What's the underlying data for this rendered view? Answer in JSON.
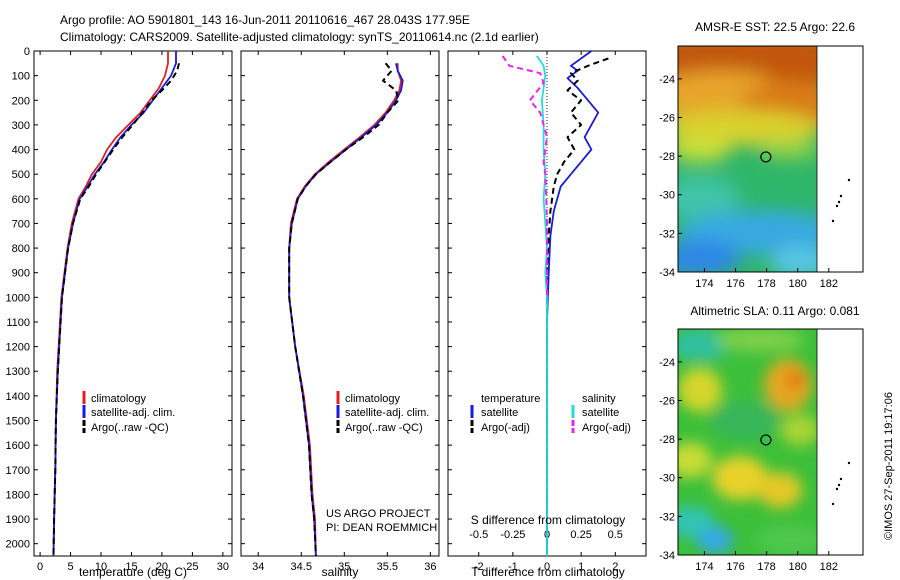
{
  "header": {
    "line1": "Argo profile: AO 5901801_143 16-Jun-2011 20110616_467 28.043S 177.95E",
    "line2": "Climatology: CARS2009. Satellite-adjusted climatology: synTS_20110614.nc (2.1d earlier)"
  },
  "colors": {
    "climatology": "#e02020",
    "satellite": "#1a1ae0",
    "argo": "#000000",
    "argo_salinity_diff": "#ee22ee",
    "satellite_salinity_diff": "#22dddd"
  },
  "chart_data": [
    {
      "type": "line",
      "id": "temperature",
      "xlabel": "temperature (deg C)",
      "ylabel": "",
      "xlim": [
        -1,
        31.5
      ],
      "ylim": [
        2050,
        0
      ],
      "xticks": [
        0,
        5,
        10,
        15,
        20,
        25,
        30
      ],
      "yticks": [
        0,
        100,
        200,
        300,
        400,
        500,
        600,
        700,
        800,
        900,
        1000,
        1100,
        1200,
        1300,
        1400,
        1500,
        1600,
        1700,
        1800,
        1900,
        2000
      ],
      "legend": [
        "climatology",
        "satellite-adj. clim.",
        "Argo(..raw -QC)"
      ],
      "series": [
        {
          "name": "climatology",
          "style": "solid",
          "color": "#e02020",
          "x": [
            21.0,
            21.0,
            20.5,
            19.5,
            18.0,
            16.5,
            14.5,
            12.5,
            11.0,
            10.0,
            8.5,
            7.5,
            6.3,
            5.2,
            4.5,
            3.5,
            2.8,
            2.6,
            2.5,
            2.4,
            2.3,
            2.2
          ],
          "y": [
            0,
            50,
            100,
            150,
            200,
            250,
            300,
            350,
            400,
            450,
            500,
            550,
            600,
            700,
            800,
            1000,
            1300,
            1500,
            1700,
            1800,
            1900,
            2050
          ]
        },
        {
          "name": "satellite-adj. clim.",
          "style": "solid",
          "color": "#1a1ae0",
          "x": [
            22.3,
            22.3,
            21.5,
            20.0,
            18.5,
            17.0,
            15.0,
            13.2,
            11.8,
            10.5,
            9.0,
            7.8,
            6.5,
            5.4,
            4.6,
            3.6,
            2.9,
            2.6,
            2.5,
            2.4,
            2.3,
            2.2
          ],
          "y": [
            0,
            50,
            100,
            150,
            200,
            250,
            300,
            350,
            400,
            450,
            500,
            550,
            600,
            700,
            800,
            1000,
            1300,
            1500,
            1700,
            1800,
            1900,
            2050
          ]
        },
        {
          "name": "Argo(..raw -QC)",
          "style": "dashed",
          "color": "#000000",
          "x": [
            22.8,
            22.5,
            21.5,
            20.0,
            18.3,
            16.8,
            15.2,
            13.5,
            12.0,
            10.6,
            9.2,
            8.0,
            6.6,
            5.4,
            4.6,
            3.6,
            2.9,
            2.6,
            2.5,
            2.4,
            2.3,
            2.2
          ],
          "y": [
            50,
            80,
            120,
            160,
            200,
            250,
            300,
            350,
            400,
            450,
            500,
            550,
            600,
            700,
            800,
            1000,
            1300,
            1500,
            1700,
            1800,
            1900,
            2050
          ]
        }
      ]
    },
    {
      "type": "line",
      "id": "salinity",
      "xlabel": "salinity",
      "ylabel": "",
      "xlim": [
        33.8,
        36.1
      ],
      "ylim": [
        2050,
        0
      ],
      "xticks": [
        34,
        34.5,
        35,
        35.5,
        36
      ],
      "legend": [
        "climatology",
        "satellite-adj. clim.",
        "Argo(..raw -QC)"
      ],
      "annotation": [
        "US ARGO PROJECT",
        "PI: DEAN ROEMMICH"
      ],
      "series": [
        {
          "name": "climatology",
          "style": "solid",
          "color": "#e02020",
          "x": [
            35.62,
            35.62,
            35.66,
            35.64,
            35.58,
            35.48,
            35.35,
            35.18,
            35.0,
            34.82,
            34.66,
            34.54,
            34.45,
            34.38,
            34.36,
            34.36,
            34.43,
            34.53,
            34.6,
            34.63,
            34.66,
            34.67
          ],
          "y": [
            50,
            80,
            120,
            160,
            200,
            250,
            300,
            350,
            400,
            450,
            500,
            550,
            600,
            700,
            800,
            1000,
            1200,
            1400,
            1600,
            1800,
            1900,
            2050
          ]
        },
        {
          "name": "satellite-adj. clim.",
          "style": "solid",
          "color": "#1a1ae0",
          "x": [
            35.6,
            35.62,
            35.68,
            35.66,
            35.6,
            35.5,
            35.37,
            35.2,
            35.02,
            34.84,
            34.67,
            34.55,
            34.46,
            34.39,
            34.36,
            34.36,
            34.43,
            34.52,
            34.59,
            34.62,
            34.65,
            34.67
          ],
          "y": [
            50,
            80,
            120,
            160,
            200,
            250,
            300,
            350,
            400,
            450,
            500,
            550,
            600,
            700,
            800,
            1000,
            1200,
            1400,
            1600,
            1800,
            1900,
            2050
          ]
        },
        {
          "name": "Argo(..raw -QC)",
          "style": "dashed",
          "color": "#000000",
          "x": [
            35.48,
            35.55,
            35.45,
            35.6,
            35.63,
            35.5,
            35.4,
            35.22,
            35.02,
            34.84,
            34.67,
            34.55,
            34.46,
            34.39,
            34.36,
            34.36,
            34.43,
            34.52,
            34.59,
            34.62,
            34.65,
            34.67
          ],
          "y": [
            50,
            80,
            120,
            160,
            200,
            250,
            300,
            350,
            400,
            450,
            500,
            550,
            600,
            700,
            800,
            1000,
            1200,
            1400,
            1600,
            1800,
            1900,
            2050
          ]
        }
      ]
    },
    {
      "type": "line",
      "id": "difference",
      "xlabel": "T difference from climatology",
      "xlabel_top": "S difference from climatology",
      "xlim": [
        -2.9,
        2.9
      ],
      "ylim": [
        2050,
        0
      ],
      "xticks_T": [
        -2,
        -1,
        0,
        1,
        2
      ],
      "xticks_S": [
        -0.5,
        -0.25,
        0,
        0.25,
        0.5
      ],
      "legend_headers": [
        "temperature",
        "salinity"
      ],
      "legend": [
        "satellite",
        "Argo(-adj)",
        "satellite",
        "Argo(-adj)"
      ],
      "series": [
        {
          "name": "satellite",
          "group": "temperature",
          "style": "solid",
          "color": "#1a1ae0",
          "x": [
            1.3,
            0.7,
            0.9,
            0.6,
            0.9,
            1.2,
            1.5,
            1.3,
            1.1,
            1.3,
            1.0,
            0.7,
            0.4,
            0.2,
            0.1,
            0.05,
            0.0,
            0.0,
            0.0,
            0.0,
            0.0
          ],
          "y": [
            0,
            60,
            80,
            110,
            150,
            200,
            250,
            300,
            350,
            400,
            450,
            500,
            550,
            650,
            750,
            900,
            1100,
            1400,
            1700,
            1900,
            2050
          ]
        },
        {
          "name": "Argo(-adj)",
          "group": "temperature",
          "style": "dashed",
          "color": "#000000",
          "x": [
            1.8,
            1.2,
            0.7,
            0.9,
            0.6,
            1.0,
            0.7,
            1.0,
            0.6,
            0.8,
            0.5,
            0.3,
            0.2,
            0.1,
            0.05,
            0.0,
            0.0,
            0.0,
            0.0
          ],
          "y": [
            30,
            60,
            90,
            120,
            160,
            200,
            250,
            300,
            350,
            400,
            450,
            500,
            550,
            650,
            750,
            900,
            1100,
            1500,
            2050
          ]
        },
        {
          "name": "satellite",
          "group": "salinity",
          "style": "solid",
          "color": "#22dddd",
          "x": [
            -0.3,
            -0.1,
            -0.05,
            -0.1,
            -0.15,
            -0.1,
            -0.1,
            -0.05,
            -0.1,
            -0.05,
            0.0,
            -0.05,
            0.0,
            0.0,
            0.0,
            0.0,
            0.0,
            0.0
          ],
          "y": [
            20,
            60,
            100,
            150,
            200,
            300,
            400,
            500,
            600,
            700,
            800,
            900,
            1000,
            1200,
            1400,
            1600,
            1800,
            2050
          ]
        },
        {
          "name": "Argo(-adj)",
          "group": "salinity",
          "style": "dashed",
          "color": "#ee22ee",
          "x": [
            -1.3,
            -1.1,
            -0.2,
            -0.1,
            -0.5,
            -0.2,
            -0.1,
            0.0,
            -0.05,
            -0.1,
            -0.05,
            -0.02,
            0.0,
            0.0,
            0.0
          ],
          "y": [
            20,
            60,
            90,
            130,
            200,
            250,
            300,
            350,
            400,
            450,
            500,
            600,
            700,
            800,
            1000
          ]
        }
      ]
    },
    {
      "type": "heatmap",
      "id": "sst-map",
      "title": "AMSR-E SST: 22.5 Argo: 22.6",
      "xticks": [
        174,
        176,
        178,
        180,
        182
      ],
      "yticks": [
        -24,
        -26,
        -28,
        -30,
        -32,
        -34
      ],
      "xlim": [
        172.3,
        184.2
      ],
      "ylim": [
        -34,
        -22.3
      ],
      "marker": {
        "lon": 177.95,
        "lat": -28.043
      }
    },
    {
      "type": "heatmap",
      "id": "sla-map",
      "title": "Altimetric SLA: 0.11 Argo: 0.081",
      "xticks": [
        174,
        176,
        178,
        180,
        182
      ],
      "yticks": [
        -24,
        -26,
        -28,
        -30,
        -32,
        -34
      ],
      "xlim": [
        172.3,
        184.2
      ],
      "ylim": [
        -34,
        -22.3
      ],
      "marker": {
        "lon": 177.95,
        "lat": -28.043
      }
    }
  ],
  "side_label": "©IMOS 27-Sep-2011 19:17:06"
}
